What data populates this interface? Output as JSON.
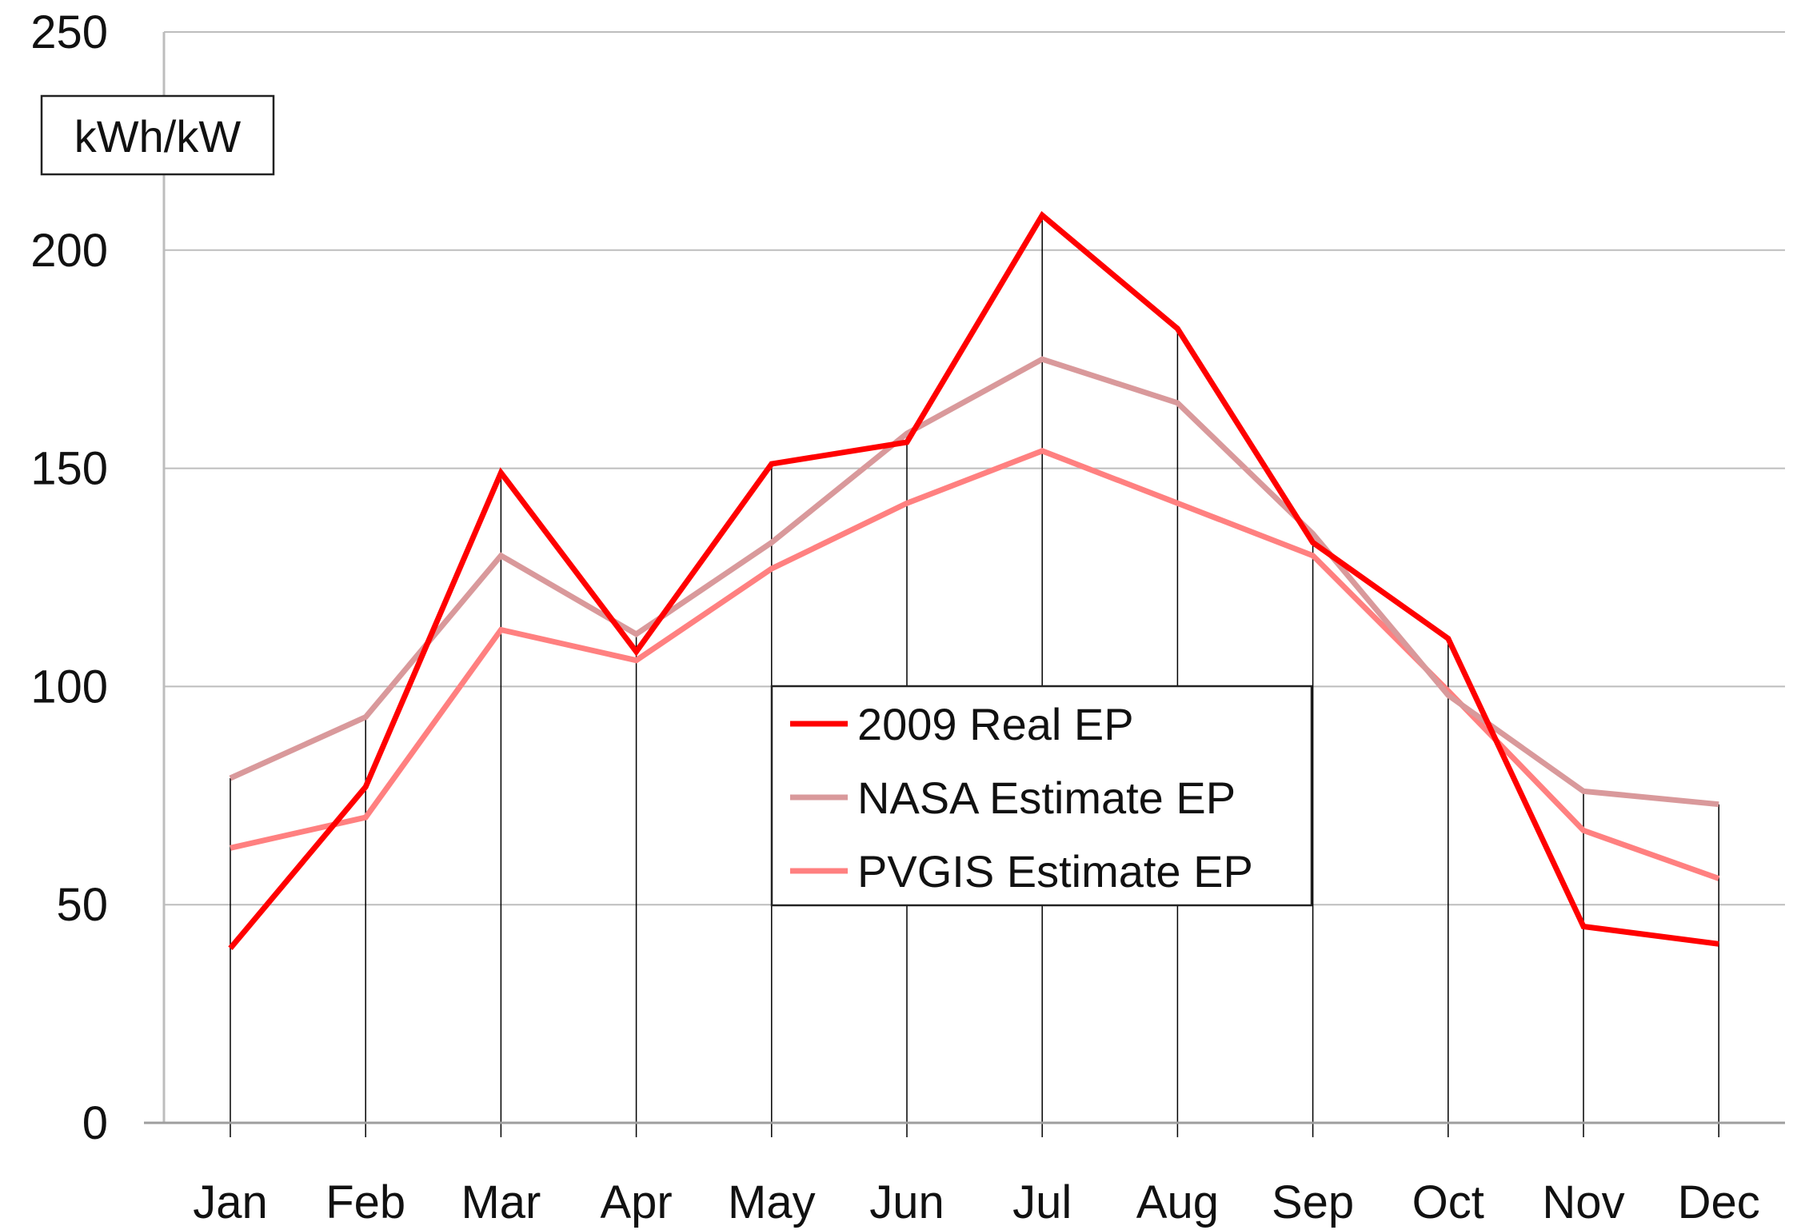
{
  "chart_data": {
    "type": "line",
    "title": "",
    "xlabel": "",
    "ylabel": "kWh/kW",
    "categories": [
      "Jan",
      "Feb",
      "Mar",
      "Apr",
      "May",
      "Jun",
      "Jul",
      "Aug",
      "Sep",
      "Oct",
      "Nov",
      "Dec"
    ],
    "ylim": [
      0,
      250
    ],
    "yticks": [
      0,
      50,
      100,
      150,
      200,
      250
    ],
    "grid": true,
    "legend_position": "center",
    "series": [
      {
        "name": "2009 Real EP",
        "color": "#ff0000",
        "values": [
          40,
          77,
          149,
          108,
          151,
          156,
          208,
          182,
          133,
          111,
          45,
          41
        ]
      },
      {
        "name": "NASA Estimate EP",
        "color": "#d9999b",
        "values": [
          79,
          93,
          130,
          112,
          133,
          158,
          175,
          165,
          135,
          98,
          76,
          73
        ]
      },
      {
        "name": "PVGIS Estimate EP",
        "color": "#ff8080",
        "values": [
          63,
          70,
          113,
          106,
          127,
          142,
          154,
          142,
          130,
          99,
          67,
          56
        ]
      }
    ]
  }
}
